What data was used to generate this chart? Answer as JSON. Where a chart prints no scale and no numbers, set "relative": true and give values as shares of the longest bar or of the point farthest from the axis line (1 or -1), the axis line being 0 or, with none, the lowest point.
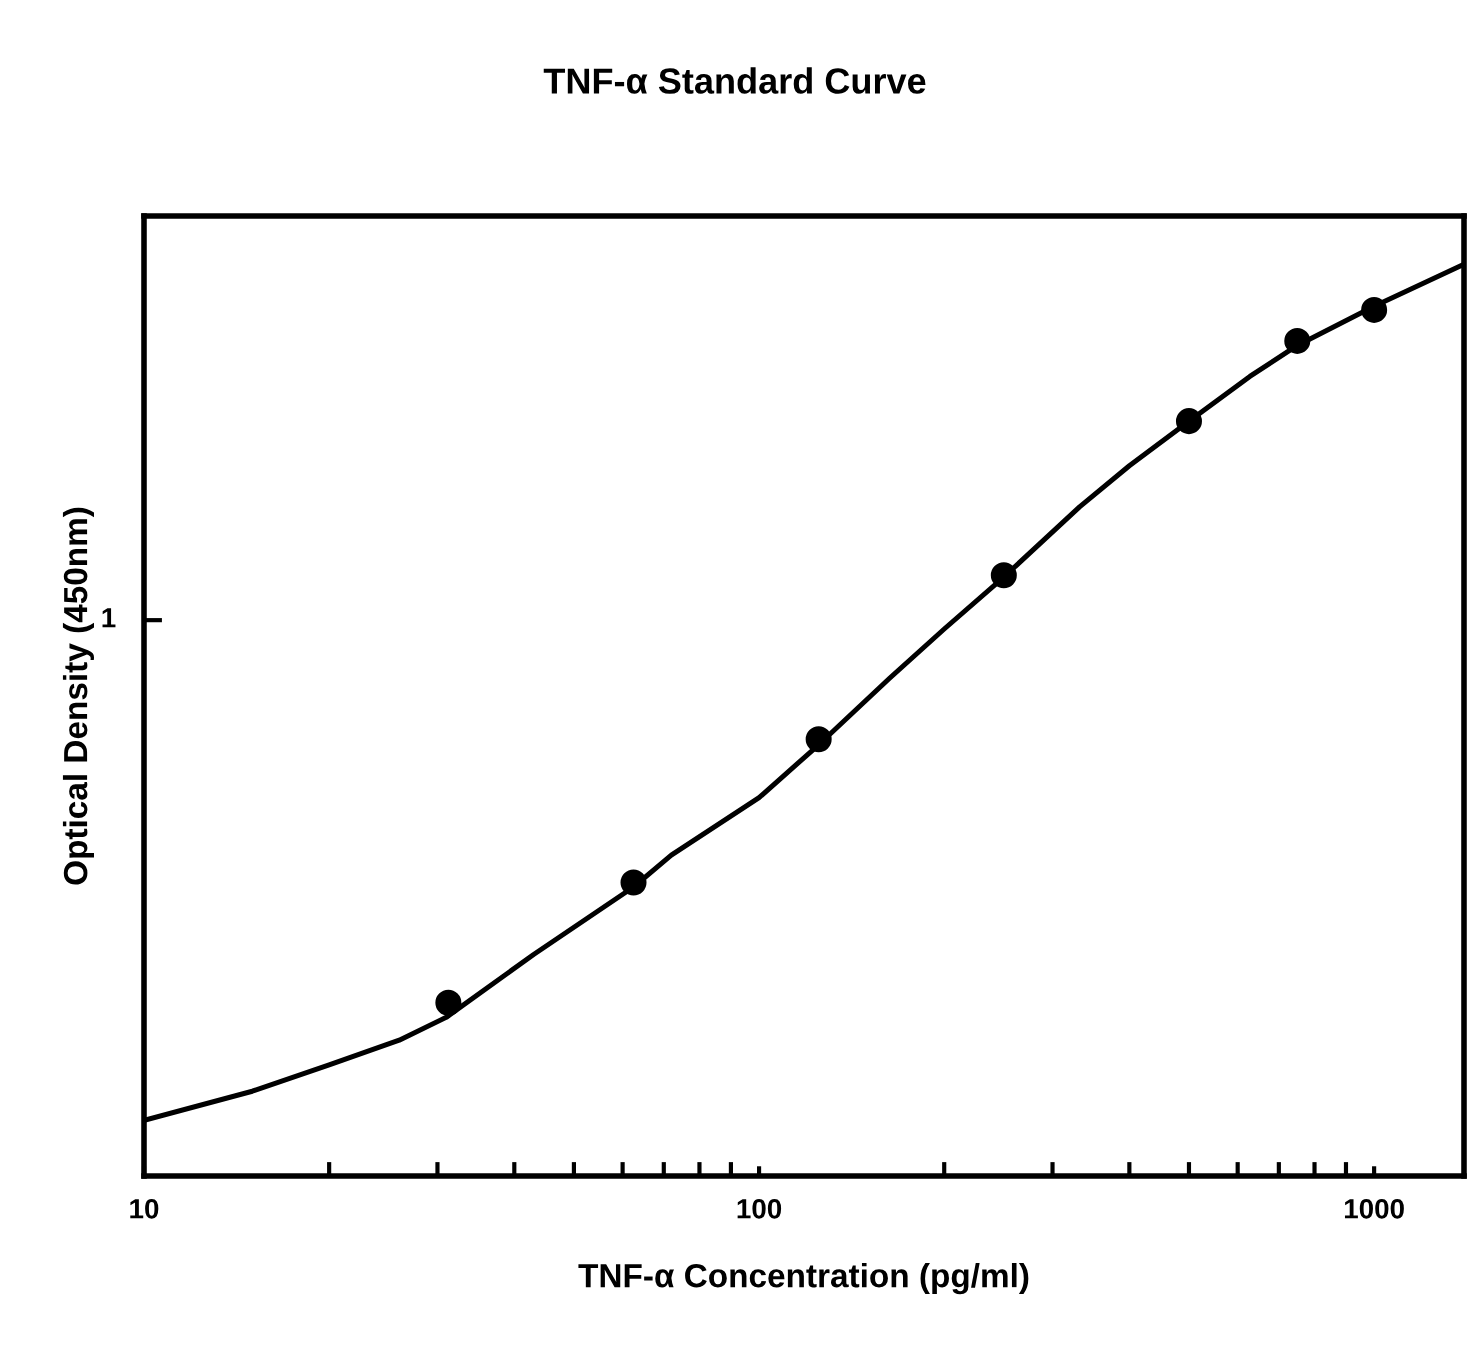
{
  "chart_data": {
    "type": "scatter",
    "title": "TNF-α Standard Curve",
    "xlabel": "TNF-α Concentration (pg/ml)",
    "ylabel": "Optical Density (450nm)",
    "log": "x",
    "marker": "circle",
    "legend": false,
    "grid": false,
    "relative": true,
    "annotations": [
      "1"
    ],
    "xlim": [
      10,
      1400
    ],
    "xticks": [
      10,
      100,
      1000
    ],
    "series": [
      {
        "type": "line",
        "color": "#000000",
        "marker": "none",
        "line_style": "solid",
        "x": [
          10,
          15,
          20,
          26,
          31,
          43,
          62.5,
          72,
          100,
          125,
          163,
          200,
          250,
          332,
          400,
          500,
          628,
          750,
          1000,
          1400
        ],
        "values": [
          0.061,
          0.093,
          0.122,
          0.149,
          0.174,
          0.243,
          0.317,
          0.352,
          0.415,
          0.473,
          0.546,
          0.6,
          0.657,
          0.734,
          0.779,
          0.828,
          0.877,
          0.911,
          0.954,
          1
        ]
      },
      {
        "color": "#000000",
        "x": [
          31.25,
          62.5,
          125,
          250,
          500,
          750,
          1000
        ],
        "values": [
          0.19,
          0.322,
          0.479,
          0.659,
          0.828,
          0.916,
          0.95
        ]
      }
    ]
  }
}
